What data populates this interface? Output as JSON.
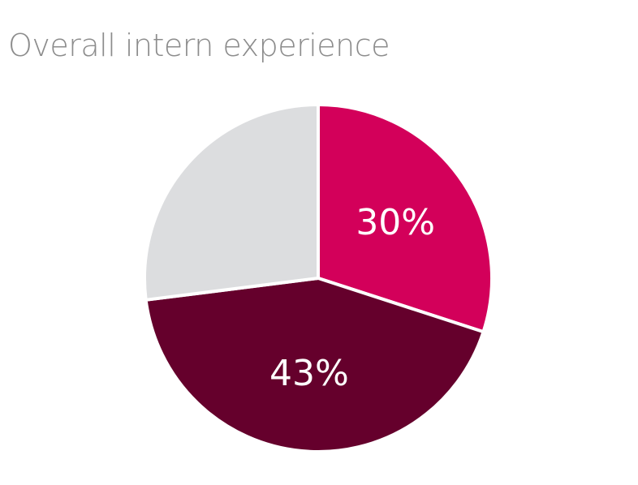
{
  "chart_data": {
    "type": "pie",
    "title": "Overall intern experience",
    "slices": [
      {
        "value": 30,
        "label": "30%",
        "color": "#d3005a"
      },
      {
        "value": 43,
        "label": "43%",
        "color": "#65002c"
      },
      {
        "value": 27,
        "label": "",
        "color": "#dcdddf"
      }
    ],
    "start_angle": "12 o'clock",
    "direction": "clockwise"
  }
}
